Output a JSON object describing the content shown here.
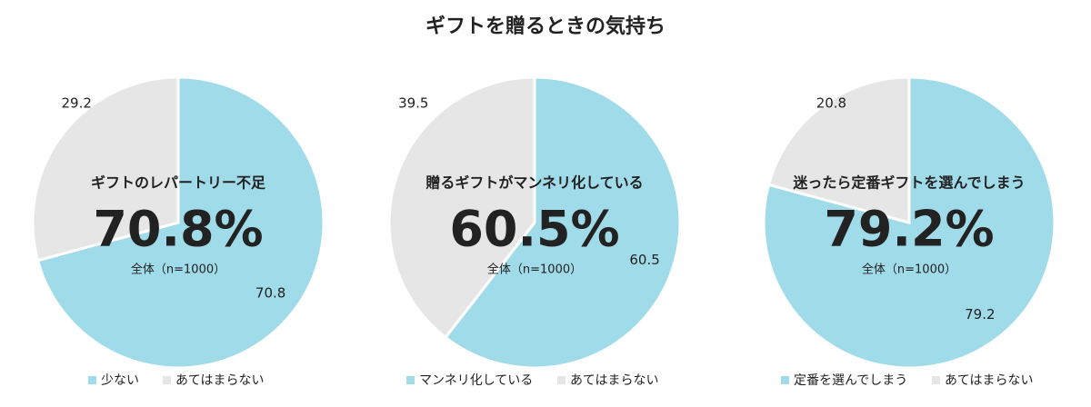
{
  "title": "ギフトを贈るときの気持ち",
  "chart_data": [
    {
      "type": "pie",
      "subtitle": "ギフトのレパートリー不足",
      "headline": "70.8%",
      "note": "全体（n=1000）",
      "categories": [
        "少ない",
        "あてはまらない"
      ],
      "values": [
        70.8,
        29.2
      ],
      "colors": [
        "#a0dbea",
        "#e6e6e6"
      ]
    },
    {
      "type": "pie",
      "subtitle": "贈るギフトがマンネリ化している",
      "headline": "60.5%",
      "note": "全体（n=1000）",
      "categories": [
        "マンネリ化している",
        "あてはまらない"
      ],
      "values": [
        60.5,
        39.5
      ],
      "colors": [
        "#a0dbea",
        "#e6e6e6"
      ]
    },
    {
      "type": "pie",
      "subtitle": "迷ったら定番ギフトを選んでしまう",
      "headline": "79.2%",
      "note": "全体（n=1000）",
      "categories": [
        "定番を選んでしまう",
        "あてはまらない"
      ],
      "values": [
        79.2,
        20.8
      ],
      "colors": [
        "#a0dbea",
        "#e6e6e6"
      ]
    }
  ]
}
